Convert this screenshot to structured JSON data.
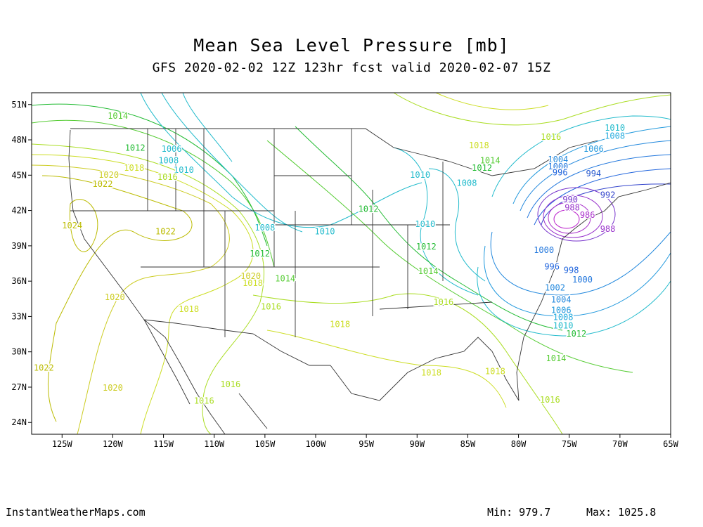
{
  "header": {
    "title": "Mean Sea Level Pressure [mb]",
    "subtitle": "GFS 2020-02-02 12Z 123hr fcst valid 2020-02-07 15Z"
  },
  "map": {
    "lon_range": [
      -128,
      -65
    ],
    "lat_range": [
      23,
      52
    ],
    "lon_ticks": [
      {
        "value": -125,
        "label": "125W"
      },
      {
        "value": -120,
        "label": "120W"
      },
      {
        "value": -115,
        "label": "115W"
      },
      {
        "value": -110,
        "label": "110W"
      },
      {
        "value": -105,
        "label": "105W"
      },
      {
        "value": -100,
        "label": "100W"
      },
      {
        "value": -95,
        "label": "95W"
      },
      {
        "value": -90,
        "label": "90W"
      },
      {
        "value": -85,
        "label": "85W"
      },
      {
        "value": -80,
        "label": "80W"
      },
      {
        "value": -75,
        "label": "75W"
      },
      {
        "value": -70,
        "label": "70W"
      },
      {
        "value": -65,
        "label": "65W"
      }
    ],
    "lat_ticks": [
      {
        "value": 51,
        "label": "51N"
      },
      {
        "value": 48,
        "label": "48N"
      },
      {
        "value": 45,
        "label": "45N"
      },
      {
        "value": 42,
        "label": "42N"
      },
      {
        "value": 39,
        "label": "39N"
      },
      {
        "value": 36,
        "label": "36N"
      },
      {
        "value": 33,
        "label": "33N"
      },
      {
        "value": 30,
        "label": "30N"
      },
      {
        "value": 27,
        "label": "27N"
      },
      {
        "value": 24,
        "label": "24N"
      }
    ],
    "contour_labels": [
      {
        "text": "1014",
        "lon": -119.5,
        "lat": 50.0,
        "color": "#55cc33"
      },
      {
        "text": "1012",
        "lon": -117.8,
        "lat": 47.3,
        "color": "#22bb33"
      },
      {
        "text": "1006",
        "lon": -114.2,
        "lat": 47.2,
        "color": "#22bbcc"
      },
      {
        "value": "",
        "text": "1008",
        "lon": -114.5,
        "lat": 46.2,
        "color": "#22bbcc"
      },
      {
        "text": "1010",
        "lon": -113.0,
        "lat": 45.4,
        "color": "#22bbcc"
      },
      {
        "text": "1018",
        "lon": -117.9,
        "lat": 45.6,
        "color": "#ccdd22"
      },
      {
        "text": "1020",
        "lon": -120.4,
        "lat": 45.0,
        "color": "#cccc22"
      },
      {
        "text": "1022",
        "lon": -121.0,
        "lat": 44.2,
        "color": "#bbbb00"
      },
      {
        "text": "1016",
        "lon": -114.6,
        "lat": 44.8,
        "color": "#aadd22"
      },
      {
        "text": "1024",
        "lon": -124.0,
        "lat": 40.7,
        "color": "#bbbb00"
      },
      {
        "text": "1022",
        "lon": -114.8,
        "lat": 40.2,
        "color": "#bbbb00"
      },
      {
        "text": "1008",
        "lon": -105.0,
        "lat": 40.5,
        "color": "#22bbcc"
      },
      {
        "text": "1010",
        "lon": -99.1,
        "lat": 40.2,
        "color": "#22bbcc"
      },
      {
        "text": "1012",
        "lon": -105.5,
        "lat": 38.3,
        "color": "#22bb33"
      },
      {
        "text": "1020",
        "lon": -106.4,
        "lat": 36.4,
        "color": "#cccc22"
      },
      {
        "text": "1018",
        "lon": -106.2,
        "lat": 35.8,
        "color": "#ccdd22"
      },
      {
        "text": "1014",
        "lon": -103.0,
        "lat": 36.2,
        "color": "#55cc33"
      },
      {
        "text": "1016",
        "lon": -104.4,
        "lat": 33.8,
        "color": "#aadd22"
      },
      {
        "text": "1018",
        "lon": -112.5,
        "lat": 33.6,
        "color": "#ccdd22"
      },
      {
        "text": "1020",
        "lon": -119.8,
        "lat": 34.6,
        "color": "#cccc22"
      },
      {
        "text": "1018",
        "lon": -97.6,
        "lat": 32.3,
        "color": "#ccdd22"
      },
      {
        "text": "1012",
        "lon": -94.8,
        "lat": 42.1,
        "color": "#22bb33"
      },
      {
        "text": "1010",
        "lon": -89.7,
        "lat": 45.0,
        "color": "#22bbcc"
      },
      {
        "text": "1008",
        "lon": -85.1,
        "lat": 44.3,
        "color": "#22bbcc"
      },
      {
        "text": "1010",
        "lon": -89.2,
        "lat": 40.8,
        "color": "#22bbcc"
      },
      {
        "text": "1012",
        "lon": -89.1,
        "lat": 38.9,
        "color": "#22bb33"
      },
      {
        "text": "1014",
        "lon": -88.9,
        "lat": 36.8,
        "color": "#55cc33"
      },
      {
        "text": "1016",
        "lon": -87.4,
        "lat": 34.2,
        "color": "#aadd22"
      },
      {
        "text": "1018",
        "lon": -88.6,
        "lat": 28.2,
        "color": "#ccdd22"
      },
      {
        "text": "1018",
        "lon": -82.3,
        "lat": 28.3,
        "color": "#ccdd22"
      },
      {
        "text": "1016",
        "lon": -108.4,
        "lat": 27.2,
        "color": "#aadd22"
      },
      {
        "text": "1016",
        "lon": -111.0,
        "lat": 25.8,
        "color": "#aadd22"
      },
      {
        "text": "1020",
        "lon": -120.0,
        "lat": 26.9,
        "color": "#cccc22"
      },
      {
        "text": "1022",
        "lon": -126.8,
        "lat": 28.6,
        "color": "#bbbb00"
      },
      {
        "text": "1018",
        "lon": -83.9,
        "lat": 47.5,
        "color": "#ccdd22"
      },
      {
        "text": "1016",
        "lon": -76.8,
        "lat": 48.2,
        "color": "#aadd22"
      },
      {
        "text": "1014",
        "lon": -82.8,
        "lat": 46.2,
        "color": "#55cc33"
      },
      {
        "text": "1012",
        "lon": -83.6,
        "lat": 45.6,
        "color": "#22bb33"
      },
      {
        "text": "1010",
        "lon": -70.5,
        "lat": 49.0,
        "color": "#22bbcc"
      },
      {
        "text": "1008",
        "lon": -70.5,
        "lat": 48.3,
        "color": "#22aadd"
      },
      {
        "text": "1006",
        "lon": -72.6,
        "lat": 47.2,
        "color": "#2299dd"
      },
      {
        "text": "1004",
        "lon": -76.1,
        "lat": 46.3,
        "color": "#2288dd"
      },
      {
        "text": "1000",
        "lon": -76.1,
        "lat": 45.7,
        "color": "#2277dd"
      },
      {
        "text": "996",
        "lon": -75.9,
        "lat": 45.2,
        "color": "#2266dd"
      },
      {
        "text": "994",
        "lon": -72.6,
        "lat": 45.1,
        "color": "#2255cc"
      },
      {
        "text": "992",
        "lon": -71.2,
        "lat": 43.3,
        "color": "#3344cc"
      },
      {
        "text": "990",
        "lon": -74.9,
        "lat": 42.9,
        "color": "#7733cc"
      },
      {
        "text": "988",
        "lon": -74.7,
        "lat": 42.2,
        "color": "#9933cc"
      },
      {
        "text": "986",
        "lon": -73.2,
        "lat": 41.6,
        "color": "#aa33cc"
      },
      {
        "text": "988",
        "lon": -71.2,
        "lat": 40.4,
        "color": "#9933cc"
      },
      {
        "text": "1000",
        "lon": -77.5,
        "lat": 38.6,
        "color": "#2277dd"
      },
      {
        "text": "996",
        "lon": -76.7,
        "lat": 37.2,
        "color": "#2266dd"
      },
      {
        "text": "998",
        "lon": -74.8,
        "lat": 36.9,
        "color": "#2266dd"
      },
      {
        "text": "1000",
        "lon": -73.7,
        "lat": 36.1,
        "color": "#2277dd"
      },
      {
        "text": "1002",
        "lon": -76.4,
        "lat": 35.4,
        "color": "#2288dd"
      },
      {
        "text": "1004",
        "lon": -75.8,
        "lat": 34.4,
        "color": "#2288dd"
      },
      {
        "text": "1006",
        "lon": -75.8,
        "lat": 33.5,
        "color": "#2299dd"
      },
      {
        "text": "1008",
        "lon": -75.6,
        "lat": 32.9,
        "color": "#22aadd"
      },
      {
        "text": "1010",
        "lon": -75.6,
        "lat": 32.2,
        "color": "#22bbcc"
      },
      {
        "text": "1012",
        "lon": -74.3,
        "lat": 31.5,
        "color": "#22bb33"
      },
      {
        "text": "1014",
        "lon": -76.3,
        "lat": 29.4,
        "color": "#55cc33"
      },
      {
        "text": "1016",
        "lon": -76.9,
        "lat": 25.9,
        "color": "#aadd22"
      }
    ]
  },
  "footer": {
    "site": "InstantWeatherMaps.com",
    "min": "Min:  979.7",
    "max": "Max: 1025.8"
  }
}
